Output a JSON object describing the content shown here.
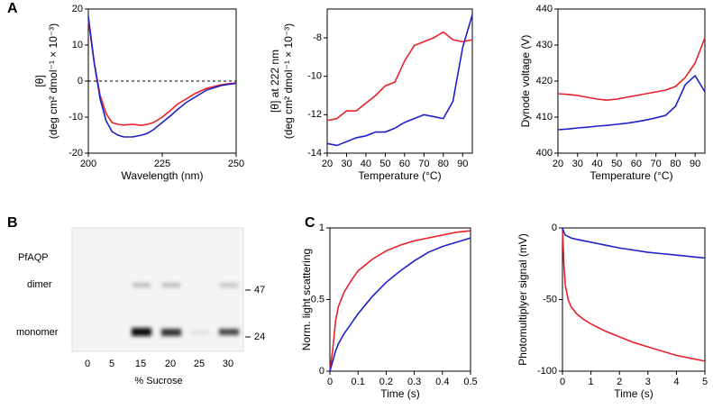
{
  "panels": [
    "A",
    "B",
    "C"
  ],
  "gel": {
    "label": "PfAQP",
    "rows": [
      "dimer",
      "monomer"
    ],
    "markers": [
      "47",
      "24"
    ],
    "lanes": [
      "0",
      "5",
      "15",
      "20",
      "25",
      "30"
    ],
    "xlabel": "% Sucrose"
  },
  "chart_data": [
    {
      "type": "line",
      "xlabel": "Wavelength (nm)",
      "ylabel": [
        "[θ]",
        "(deg cm² dmol⁻¹ × 10⁻³)"
      ],
      "xlim": [
        200,
        250
      ],
      "xticks": [
        200,
        225,
        250
      ],
      "ylim": [
        -20,
        20
      ],
      "yticks": [
        -20,
        -10,
        0,
        10,
        20
      ],
      "zero_line": true,
      "x": [
        200,
        202,
        204,
        206,
        208,
        210,
        212,
        215,
        218,
        220,
        222,
        225,
        228,
        230,
        233,
        236,
        240,
        245,
        250
      ],
      "series": [
        {
          "color": "#e8202a",
          "values": [
            17,
            5,
            -4,
            -9,
            -11.5,
            -12,
            -12.2,
            -12,
            -12.3,
            -12,
            -11.5,
            -10,
            -8,
            -6.5,
            -5,
            -3.5,
            -2,
            -1,
            -0.5
          ]
        },
        {
          "color": "#2020c8",
          "values": [
            18,
            5,
            -5,
            -11,
            -14,
            -15,
            -15.5,
            -15.5,
            -15,
            -14.5,
            -13.5,
            -11.5,
            -9.5,
            -8,
            -6,
            -4.5,
            -2.5,
            -1.2,
            -0.6
          ]
        }
      ]
    },
    {
      "type": "line",
      "xlabel": "Temperature (°C)",
      "ylabel": [
        "[θ]  at 222 nm",
        "(deg cm² dmol⁻¹ × 10⁻³)"
      ],
      "xlim": [
        20,
        95
      ],
      "xticks": [
        20,
        30,
        40,
        50,
        60,
        70,
        80,
        90
      ],
      "ylim": [
        -14,
        -6.5
      ],
      "yticks": [
        -14,
        -12,
        -10,
        -8
      ],
      "x": [
        20,
        25,
        30,
        35,
        40,
        45,
        50,
        55,
        60,
        65,
        70,
        75,
        80,
        85,
        90,
        95
      ],
      "series": [
        {
          "color": "#e8202a",
          "values": [
            -12.3,
            -12.2,
            -11.8,
            -11.8,
            -11.4,
            -11,
            -10.5,
            -10.3,
            -9.2,
            -8.4,
            -8.2,
            -8,
            -7.7,
            -8.1,
            -8.2,
            -8.1
          ]
        },
        {
          "color": "#2020c8",
          "values": [
            -13.5,
            -13.6,
            -13.4,
            -13.2,
            -13.1,
            -12.9,
            -12.9,
            -12.7,
            -12.4,
            -12.2,
            -12,
            -12.1,
            -12.2,
            -11.3,
            -8.5,
            -6.8
          ]
        }
      ]
    },
    {
      "type": "line",
      "xlabel": "Temperature (°C)",
      "ylabel": [
        "Dynode voltage (V)"
      ],
      "xlim": [
        20,
        95
      ],
      "xticks": [
        20,
        30,
        40,
        50,
        60,
        70,
        80,
        90
      ],
      "ylim": [
        400,
        440
      ],
      "yticks": [
        400,
        410,
        420,
        430,
        440
      ],
      "x": [
        20,
        25,
        30,
        35,
        40,
        45,
        50,
        55,
        60,
        65,
        70,
        75,
        80,
        85,
        90,
        95
      ],
      "series": [
        {
          "color": "#e8202a",
          "values": [
            416.5,
            416.3,
            416,
            415.5,
            415,
            414.7,
            415,
            415.5,
            416,
            416.5,
            417,
            417.5,
            418.5,
            421,
            425,
            432
          ]
        },
        {
          "color": "#2020c8",
          "values": [
            406.5,
            406.7,
            407,
            407.2,
            407.5,
            407.7,
            408,
            408.3,
            408.7,
            409.2,
            409.8,
            410.5,
            413,
            419,
            421.5,
            417
          ]
        }
      ]
    },
    {
      "type": "line",
      "xlabel": "Time (s)",
      "ylabel": [
        "Norm. light scattering"
      ],
      "xlim": [
        0,
        0.5
      ],
      "xticks": [
        0,
        0.1,
        0.2,
        0.3,
        0.4,
        0.5
      ],
      "ylim": [
        0,
        1
      ],
      "yticks": [
        0,
        0.5,
        1
      ],
      "x": [
        0,
        0.01,
        0.02,
        0.03,
        0.05,
        0.075,
        0.1,
        0.15,
        0.2,
        0.25,
        0.3,
        0.35,
        0.4,
        0.45,
        0.5
      ],
      "series": [
        {
          "color": "#e8202a",
          "values": [
            0,
            0.15,
            0.35,
            0.45,
            0.55,
            0.63,
            0.7,
            0.78,
            0.84,
            0.88,
            0.91,
            0.93,
            0.95,
            0.97,
            0.98
          ]
        },
        {
          "color": "#2020c8",
          "values": [
            0,
            0.07,
            0.14,
            0.19,
            0.26,
            0.33,
            0.4,
            0.52,
            0.62,
            0.7,
            0.77,
            0.83,
            0.87,
            0.9,
            0.93
          ]
        }
      ]
    },
    {
      "type": "line",
      "xlabel": "Time (s)",
      "ylabel": [
        "Photomultiplyer signal (mV)"
      ],
      "xlim": [
        0,
        5
      ],
      "xticks": [
        0,
        1,
        2,
        3,
        4,
        5
      ],
      "ylim": [
        -100,
        0
      ],
      "yticks": [
        -100,
        -50,
        0
      ],
      "x": [
        0,
        0.05,
        0.1,
        0.2,
        0.3,
        0.5,
        0.75,
        1,
        1.5,
        2,
        2.5,
        3,
        3.5,
        4,
        4.5,
        5
      ],
      "series": [
        {
          "color": "#e8202a",
          "values": [
            0,
            -25,
            -40,
            -50,
            -55,
            -60,
            -64,
            -67,
            -72,
            -76,
            -80,
            -83,
            -86,
            -89,
            -91,
            -93
          ]
        },
        {
          "color": "#2020c8",
          "values": [
            0,
            -3,
            -5,
            -6,
            -7,
            -8,
            -9,
            -10,
            -12,
            -14,
            -15.5,
            -17,
            -18,
            -19,
            -20,
            -21
          ]
        }
      ]
    }
  ]
}
